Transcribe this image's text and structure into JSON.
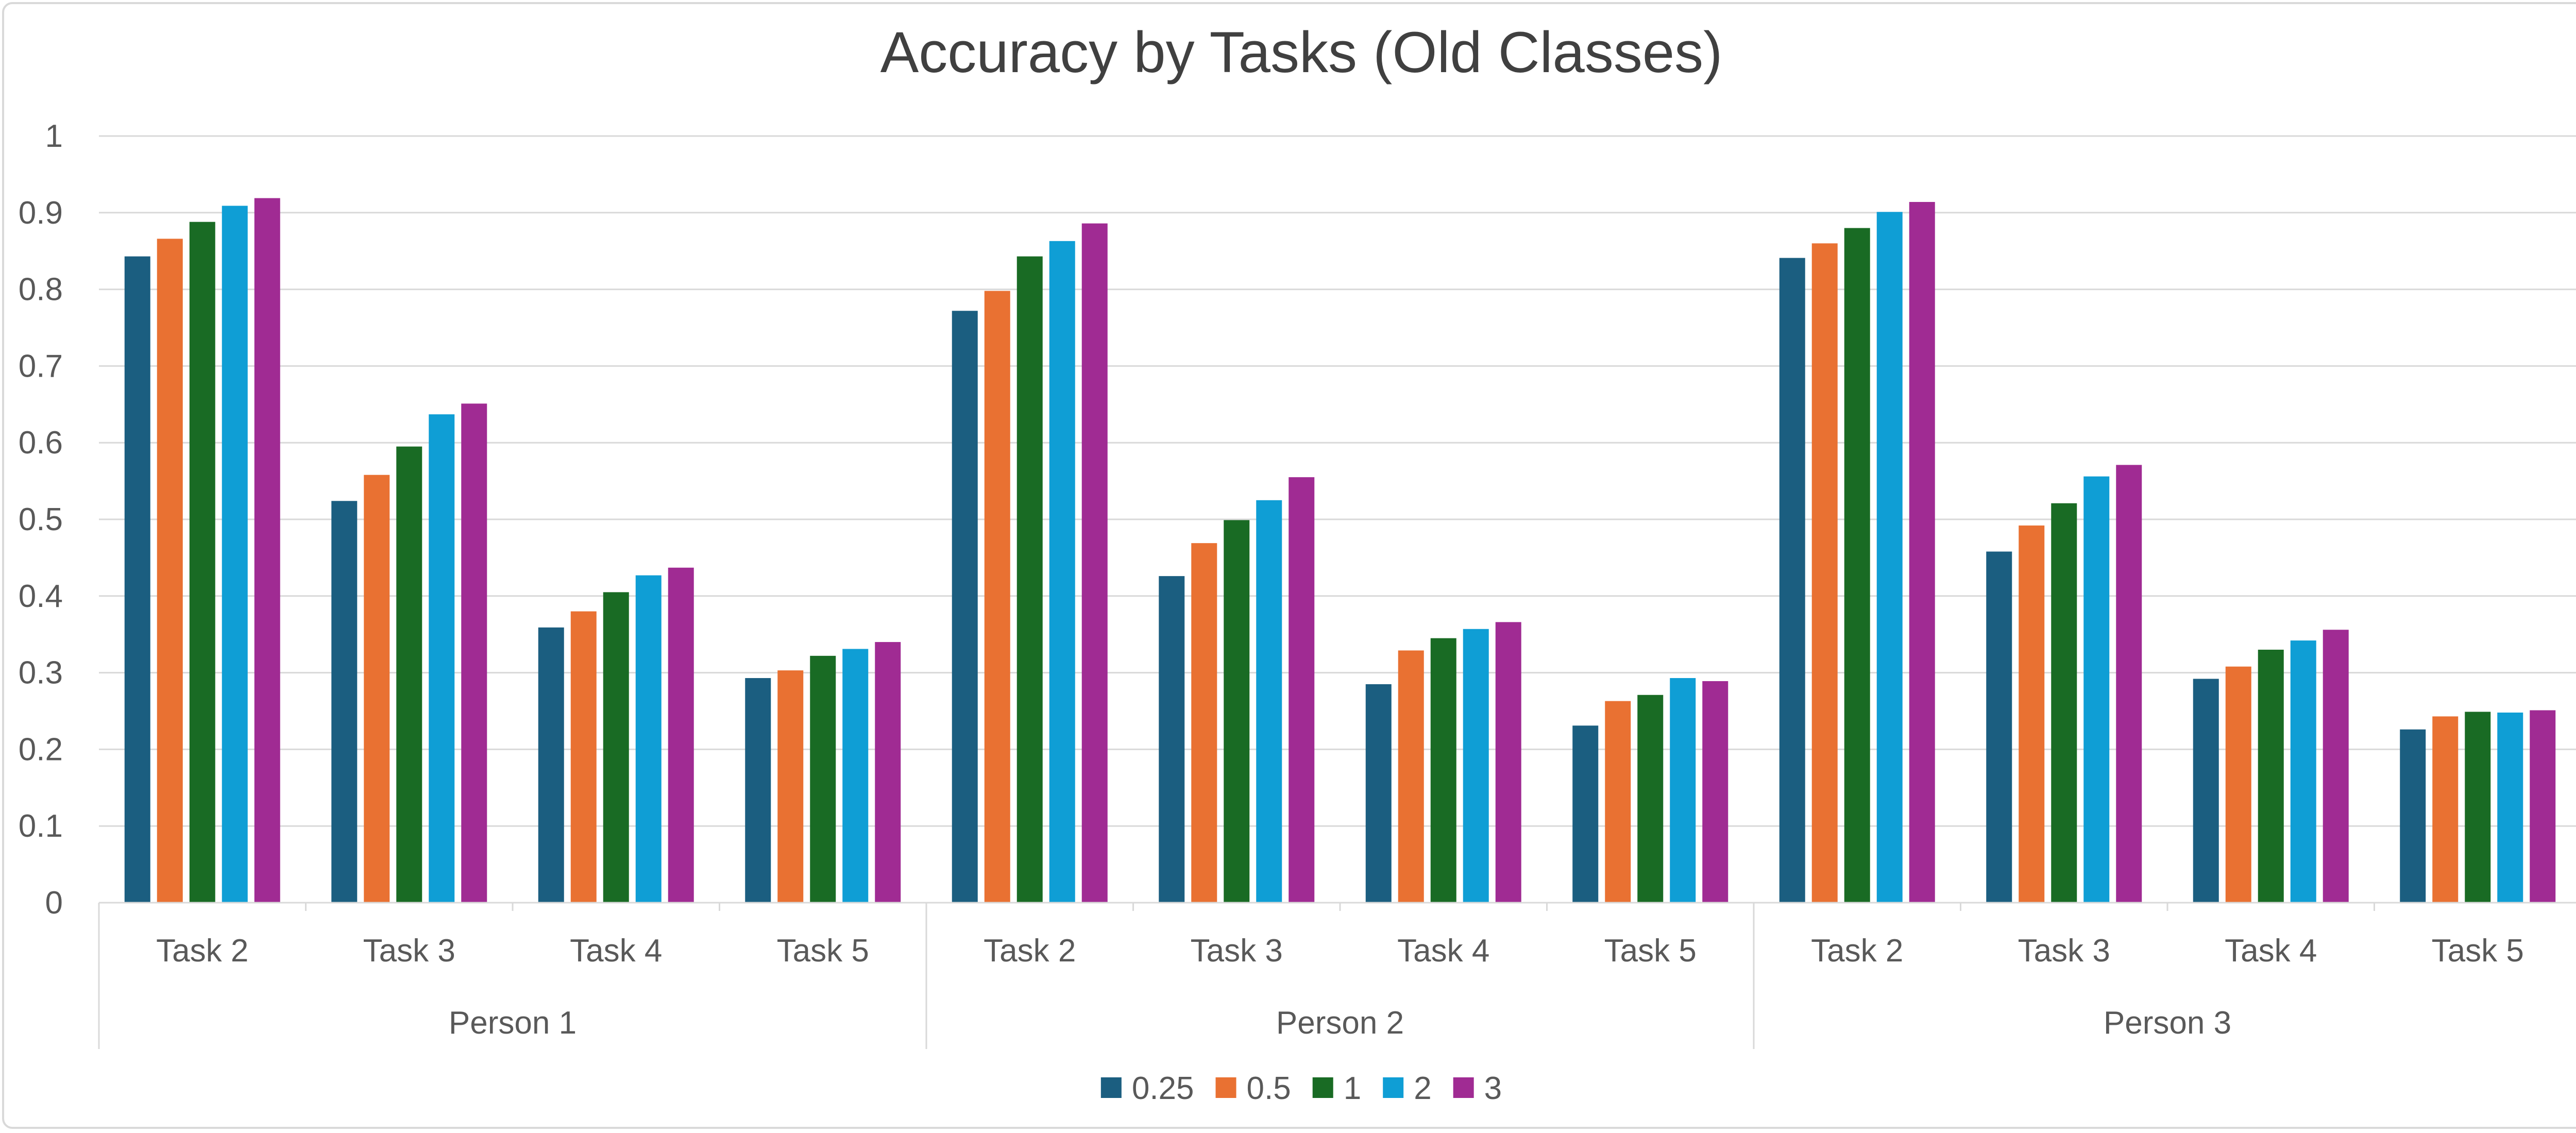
{
  "chart_data": {
    "type": "bar",
    "title": "Accuracy by Tasks (Old Classes)",
    "xlabel": "",
    "ylabel": "",
    "ylim": [
      0,
      1
    ],
    "yticks": [
      "0",
      "0.1",
      "0.2",
      "0.3",
      "0.4",
      "0.5",
      "0.6",
      "0.7",
      "0.8",
      "0.9",
      "1"
    ],
    "grid": true,
    "legend_position": "bottom",
    "groups": [
      {
        "label": "Person 1",
        "categories": [
          "Task 2",
          "Task 3",
          "Task 4",
          "Task 5"
        ]
      },
      {
        "label": "Person 2",
        "categories": [
          "Task 2",
          "Task 3",
          "Task 4",
          "Task 5"
        ]
      },
      {
        "label": "Person 3",
        "categories": [
          "Task 2",
          "Task 3",
          "Task 4",
          "Task 5"
        ]
      }
    ],
    "series": [
      {
        "name": "0.25",
        "color": "#1b5e80",
        "values": [
          0.843,
          0.524,
          0.359,
          0.293,
          0.772,
          0.426,
          0.285,
          0.231,
          0.841,
          0.458,
          0.292,
          0.226
        ]
      },
      {
        "name": "0.5",
        "color": "#e97132",
        "values": [
          0.866,
          0.558,
          0.38,
          0.303,
          0.798,
          0.469,
          0.329,
          0.263,
          0.86,
          0.492,
          0.308,
          0.243
        ]
      },
      {
        "name": "1",
        "color": "#196b24",
        "values": [
          0.888,
          0.595,
          0.405,
          0.322,
          0.843,
          0.499,
          0.345,
          0.271,
          0.88,
          0.521,
          0.33,
          0.249
        ]
      },
      {
        "name": "2",
        "color": "#0f9ed5",
        "values": [
          0.909,
          0.637,
          0.427,
          0.331,
          0.863,
          0.525,
          0.357,
          0.293,
          0.901,
          0.556,
          0.342,
          0.248
        ]
      },
      {
        "name": "3",
        "color": "#a02b93",
        "values": [
          0.919,
          0.651,
          0.437,
          0.34,
          0.886,
          0.555,
          0.366,
          0.289,
          0.914,
          0.571,
          0.356,
          0.251
        ]
      }
    ]
  }
}
